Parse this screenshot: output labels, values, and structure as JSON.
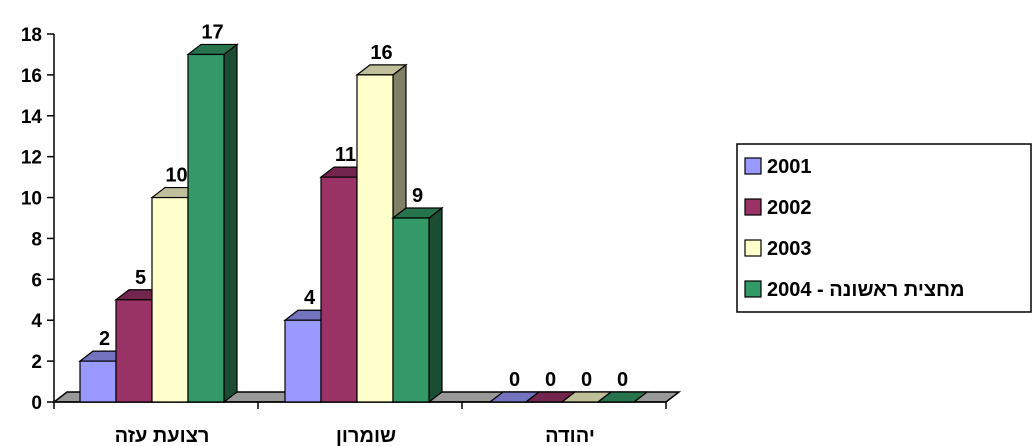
{
  "chart_data": {
    "type": "bar",
    "categories": [
      "הזע תעוצר",
      "ןורמוש",
      "הדוהי"
    ],
    "series": [
      {
        "name": "2001",
        "values": [
          2,
          4,
          0
        ],
        "color": "#9999ff"
      },
      {
        "name": "2002",
        "values": [
          5,
          11,
          0
        ],
        "color": "#993366"
      },
      {
        "name": "2003",
        "values": [
          10,
          16,
          0
        ],
        "color": "#ffffcc"
      },
      {
        "name": "2004 - הנושאר תיצחמ",
        "values": [
          17,
          9,
          0
        ],
        "color": "#339966"
      }
    ],
    "y_ticks": [
      "0",
      "2",
      "4",
      "6",
      "8",
      "10",
      "12",
      "14",
      "16",
      "18"
    ],
    "ylim": [
      0,
      18
    ],
    "legend_position": "right",
    "grid": false,
    "style": "3d-column"
  }
}
